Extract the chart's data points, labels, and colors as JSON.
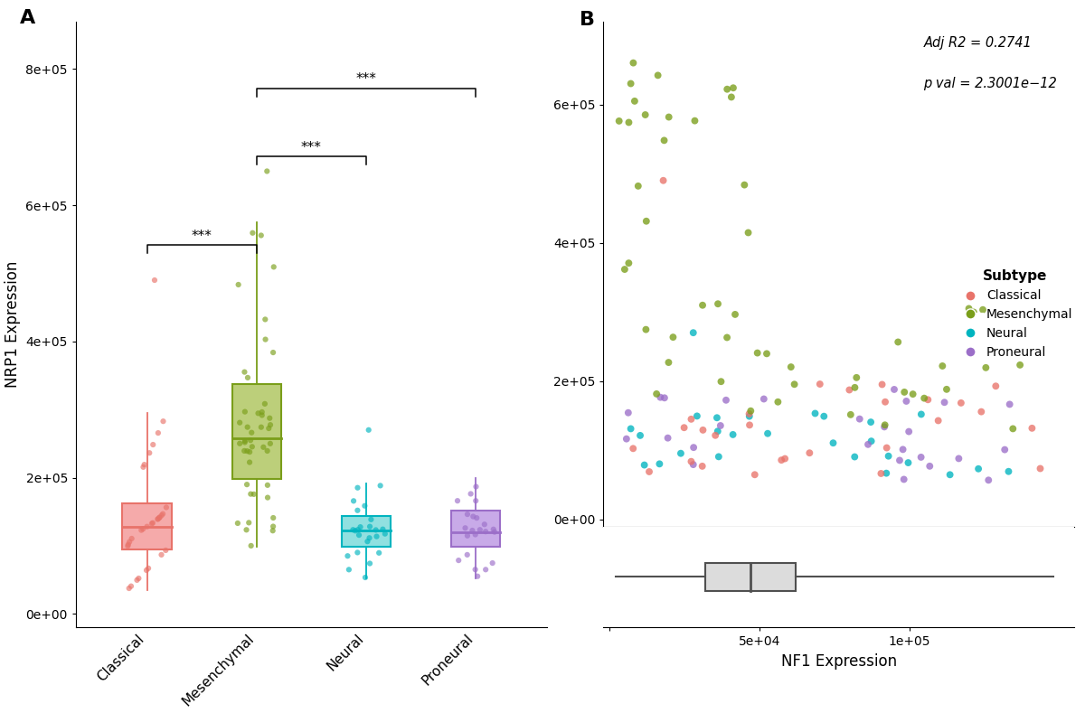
{
  "panel_a": {
    "ylabel": "NRP1 Expression",
    "categories": [
      "Classical",
      "Mesenchymal",
      "Neural",
      "Proneural"
    ],
    "edge_colors": [
      "#E8736A",
      "#7A9E1A",
      "#00B4BF",
      "#9B6EC8"
    ],
    "box_facecolors": [
      "#F5AAAA",
      "#BCCF7A",
      "#90E0E0",
      "#C8AAE8"
    ],
    "ylim": [
      -20000,
      870000
    ],
    "yticks": [
      0,
      200000,
      400000,
      600000,
      800000
    ],
    "ytick_labels": [
      "0e+00",
      "2e+05",
      "4e+05",
      "6e+05",
      "8e+05"
    ],
    "boxplot_data": {
      "Classical": {
        "median": 128000,
        "q1": 95000,
        "q3": 162000,
        "whisker_low": 35000,
        "whisker_high": 295000
      },
      "Mesenchymal": {
        "median": 258000,
        "q1": 198000,
        "q3": 338000,
        "whisker_low": 98000,
        "whisker_high": 575000
      },
      "Neural": {
        "median": 122000,
        "q1": 98000,
        "q3": 143000,
        "whisker_low": 52000,
        "whisker_high": 192000
      },
      "Proneural": {
        "median": 120000,
        "q1": 98000,
        "q3": 152000,
        "whisker_low": 52000,
        "whisker_high": 200000
      }
    },
    "outliers": {
      "Classical": [
        490000
      ],
      "Mesenchymal": [
        650000
      ],
      "Neural": [
        270000
      ],
      "Proneural": []
    },
    "significance": [
      {
        "group1": 0,
        "group2": 1,
        "y": 530000,
        "label": "***"
      },
      {
        "group1": 1,
        "group2": 2,
        "y": 660000,
        "label": "***"
      },
      {
        "group1": 1,
        "group2": 3,
        "y": 760000,
        "label": "***"
      }
    ],
    "n_points": {
      "Classical": 32,
      "Mesenchymal": 48,
      "Neural": 26,
      "Proneural": 24
    }
  },
  "panel_b": {
    "xlabel": "NF1 Expression",
    "annotation_line1": "Adj R2 = 0.2741",
    "annotation_line2": "p val = 2.3001e−12",
    "scatter_xlim": [
      -2000,
      155000
    ],
    "scatter_ylim": [
      -10000,
      720000
    ],
    "scatter_yticks": [
      0,
      200000,
      400000,
      600000
    ],
    "scatter_ytick_labels": [
      "0e+00",
      "2e+05",
      "4e+05",
      "6e+05"
    ],
    "nf1_boxplot": {
      "median": 47000,
      "q1": 32000,
      "q3": 62000,
      "whisker_low": 2000,
      "whisker_high": 148000
    },
    "subtype_colors": {
      "Classical": "#E8736A",
      "Mesenchymal": "#7A9E1A",
      "Neural": "#00B4BF",
      "Proneural": "#9B6EC8"
    },
    "legend_title": "Subtype"
  }
}
